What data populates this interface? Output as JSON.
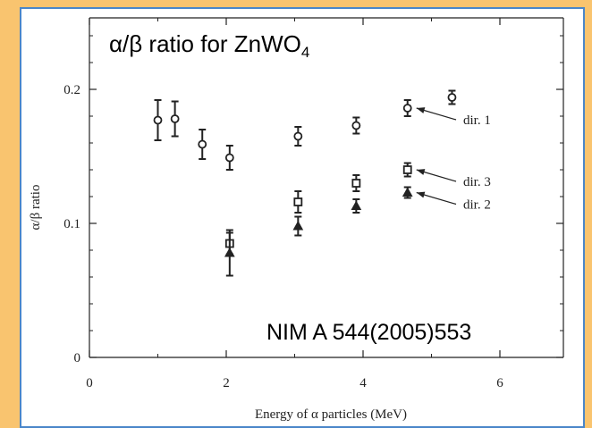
{
  "slide": {
    "reference": "NIM A 544(2005)553",
    "colors": {
      "slide_background": "#f9c46f",
      "panel_border": "#4a86c9",
      "marker": "#222222"
    }
  },
  "chart_data": {
    "type": "scatter",
    "title": {
      "main": "α/β ratio for ZnWO",
      "subscript": "4"
    },
    "xlabel": "Energy of α particles (MeV)",
    "ylabel": "α/β ratio",
    "xlim": [
      0,
      7
    ],
    "ylim": [
      0,
      0.2
    ],
    "xticks": [
      0,
      2,
      4,
      6
    ],
    "xtick_labels": [
      "0",
      "2",
      "4",
      "6"
    ],
    "yticks": [
      0,
      0.1,
      0.2
    ],
    "ytick_labels": [
      "0",
      "0.1",
      "0.2"
    ],
    "grid": false,
    "series": [
      {
        "name": "dir. 1",
        "marker": "open-circle",
        "points": [
          {
            "x": 1.0,
            "y": 0.177,
            "err": 0.015
          },
          {
            "x": 1.25,
            "y": 0.178,
            "err": 0.013
          },
          {
            "x": 1.65,
            "y": 0.159,
            "err": 0.011
          },
          {
            "x": 2.05,
            "y": 0.149,
            "err": 0.009
          },
          {
            "x": 3.05,
            "y": 0.165,
            "err": 0.007
          },
          {
            "x": 3.9,
            "y": 0.173,
            "err": 0.006
          },
          {
            "x": 4.65,
            "y": 0.186,
            "err": 0.006
          },
          {
            "x": 5.3,
            "y": 0.194,
            "err": 0.005
          }
        ]
      },
      {
        "name": "dir. 3",
        "marker": "open-square",
        "points": [
          {
            "x": 2.05,
            "y": 0.085,
            "err": 0.008
          },
          {
            "x": 3.05,
            "y": 0.116,
            "err": 0.008
          },
          {
            "x": 3.9,
            "y": 0.13,
            "err": 0.006
          },
          {
            "x": 4.65,
            "y": 0.14,
            "err": 0.005
          }
        ]
      },
      {
        "name": "dir. 2",
        "marker": "filled-triangle",
        "points": [
          {
            "x": 2.05,
            "y": 0.078,
            "err": 0.017
          },
          {
            "x": 3.05,
            "y": 0.098,
            "err": 0.007
          },
          {
            "x": 3.9,
            "y": 0.113,
            "err": 0.005
          },
          {
            "x": 4.65,
            "y": 0.123,
            "err": 0.004
          }
        ]
      }
    ],
    "annotations": [
      {
        "text": "dir. 1",
        "target_series": "dir. 1",
        "target_x": 4.65,
        "target_y": 0.186
      },
      {
        "text": "dir. 3",
        "target_series": "dir. 3",
        "target_x": 4.65,
        "target_y": 0.14
      },
      {
        "text": "dir. 2",
        "target_series": "dir. 2",
        "target_x": 4.65,
        "target_y": 0.123
      }
    ]
  }
}
